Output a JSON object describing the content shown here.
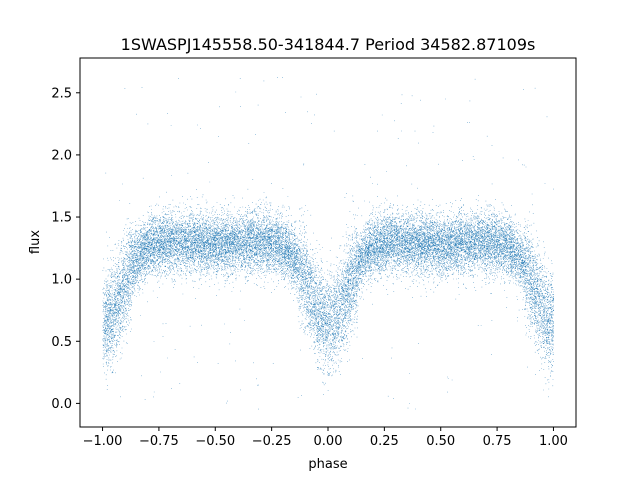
{
  "chart_data": {
    "type": "scatter",
    "title": "1SWASPJ145558.50-341844.7 Period 34582.87109s",
    "xlabel": "phase",
    "ylabel": "flux",
    "xlim": [
      -1.1,
      1.1
    ],
    "ylim": [
      -0.19,
      2.78
    ],
    "x_ticks": [
      -1.0,
      -0.75,
      -0.5,
      -0.25,
      0.0,
      0.25,
      0.5,
      0.75,
      1.0
    ],
    "x_tick_labels": [
      "−1.00",
      "−0.75",
      "−0.50",
      "−0.25",
      "0.00",
      "0.25",
      "0.50",
      "0.75",
      "1.00"
    ],
    "y_ticks": [
      0.0,
      0.5,
      1.0,
      1.5,
      2.0,
      2.5
    ],
    "y_tick_labels": [
      "0.0",
      "0.5",
      "1.0",
      "1.5",
      "2.0",
      "2.5"
    ],
    "grid": false,
    "marker_color": "#1f77b4",
    "series": [
      {
        "description_of_distribution": "",
        "x_range": [
          -1.0,
          1.0
        ],
        "baseline_flux": 1.3,
        "primary_eclipse": {
          "phases": [
            0.0,
            -1.0,
            1.0
          ],
          "min_flux": 0.65,
          "half_width": 0.12
        },
        "secondary_eclipse": {
          "phases": [
            -0.5,
            0.5
          ],
          "min_flux": 1.28,
          "half_width": 0.1
        },
        "scatter_sigma": 0.12,
        "outlier_range": [
          -0.05,
          2.65
        ],
        "n_points": 24000
      }
    ]
  }
}
